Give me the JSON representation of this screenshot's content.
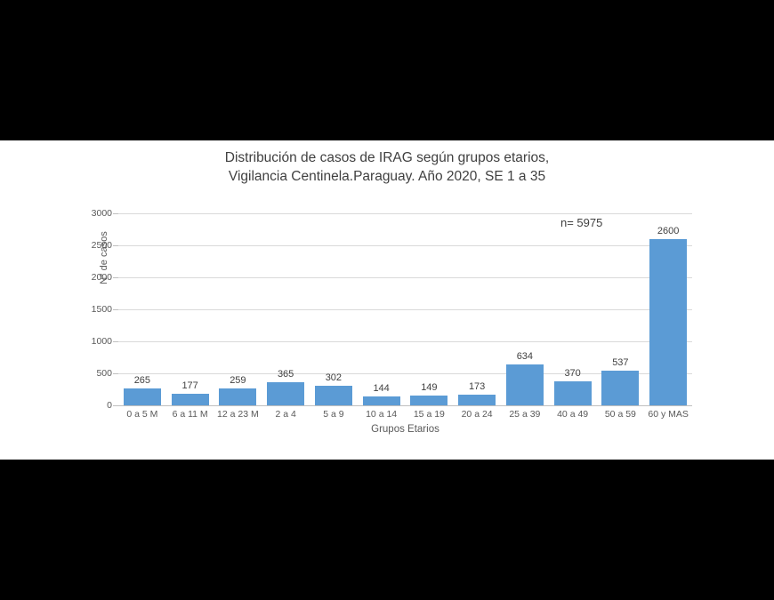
{
  "canvas": {
    "background_color": "#000000",
    "slide_background_color": "#ffffff"
  },
  "chart_data": {
    "type": "bar",
    "title": "Distribución de casos de IRAG según grupos etarios, Vigilancia Centinela.Paraguay.  Año 2020, SE 1 a 35",
    "title_line1": "Distribución de casos de IRAG según grupos etarios,",
    "title_line2": "Vigilancia Centinela.Paraguay.  Año 2020, SE 1 a 35",
    "annotation": "n= 5975",
    "xlabel": "Grupos Etarios",
    "ylabel": "N° de casos",
    "categories": [
      "0 a 5 M",
      "6 a 11 M",
      "12 a 23 M",
      "2 a 4",
      "5 a 9",
      "10 a 14",
      "15 a 19",
      "20 a 24",
      "25 a 39",
      "40 a 49",
      "50 a 59",
      "60 y MAS"
    ],
    "values": [
      265,
      177,
      259,
      365,
      302,
      144,
      149,
      173,
      634,
      370,
      537,
      2600
    ],
    "y_ticks": [
      0,
      500,
      1000,
      1500,
      2000,
      2500,
      3000
    ],
    "ylim": [
      0,
      3000
    ],
    "grid": true,
    "legend_position": "none",
    "bar_color": "#5B9BD5",
    "gridline_color": "#d9d9d9",
    "text_color": "#404040",
    "axis_label_color": "#595959"
  }
}
